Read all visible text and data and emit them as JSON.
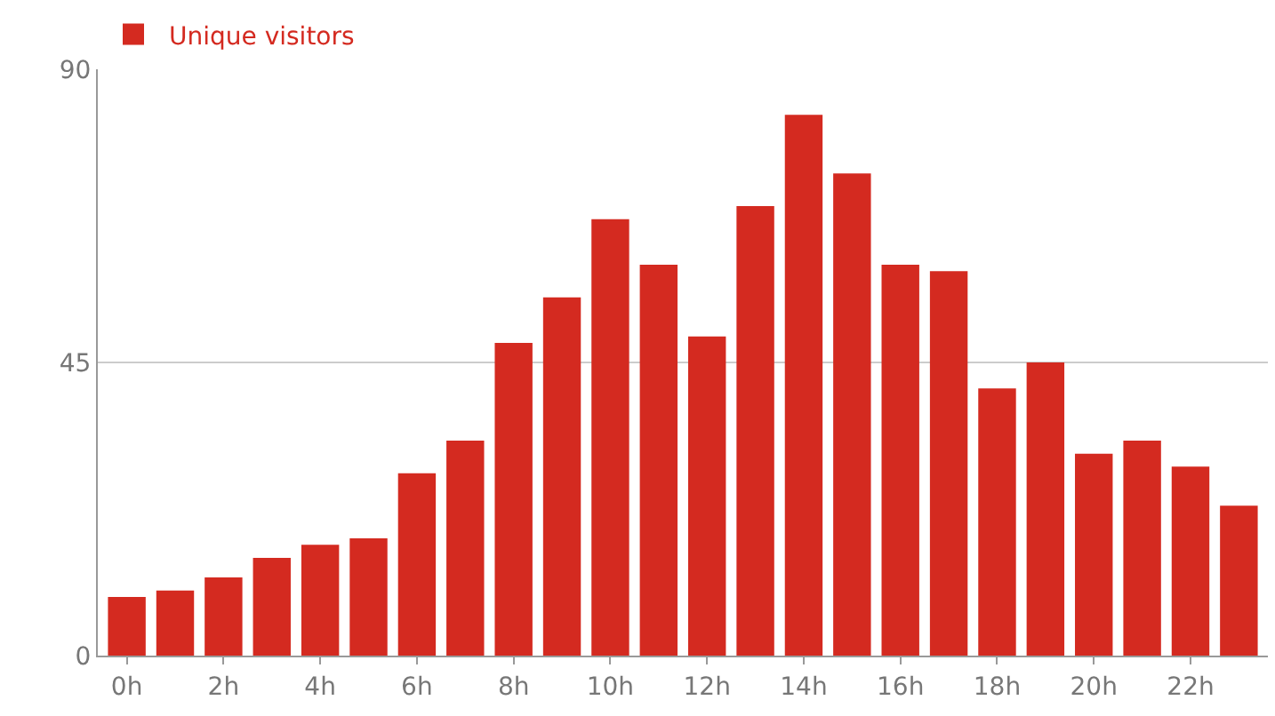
{
  "chart_data": {
    "type": "bar",
    "categories": [
      "0h",
      null,
      "2h",
      null,
      "4h",
      null,
      "6h",
      null,
      "8h",
      null,
      "10h",
      null,
      "12h",
      null,
      "14h",
      null,
      "16h",
      null,
      "18h",
      null,
      "20h",
      null,
      "22h",
      null
    ],
    "series": [
      {
        "name": "Unique visitors",
        "color": "#d42a20",
        "values": [
          9,
          10,
          12,
          15,
          17,
          18,
          28,
          33,
          48,
          55,
          67,
          60,
          49,
          69,
          83,
          74,
          60,
          59,
          41,
          45,
          31,
          33,
          29,
          23
        ]
      }
    ],
    "ylim": [
      0,
      90
    ],
    "yticks": [
      0,
      45,
      90
    ],
    "grid": "y",
    "legend": "top left"
  }
}
